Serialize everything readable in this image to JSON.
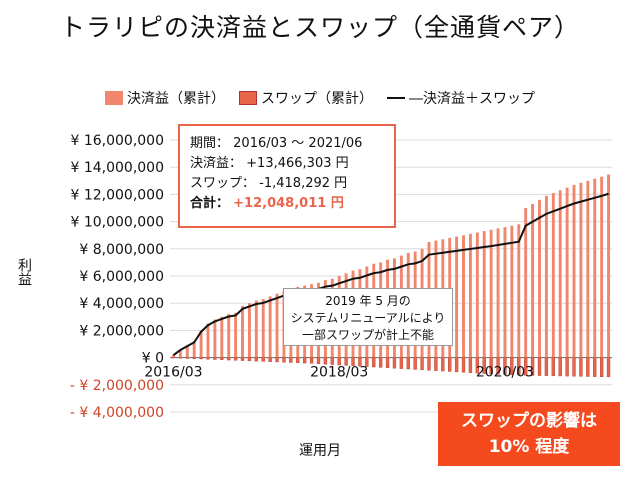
{
  "chart_data": {
    "type": "bar",
    "title": "トラリピの決済益とスワップ（全通貨ペア）",
    "legend": [
      "決済益（累計）",
      "スワップ（累計）",
      "―決済益＋スワップ"
    ],
    "ylabel": "利益",
    "xlabel": "運用月",
    "ylim": [
      -4000000,
      16000000
    ],
    "y_ticks": [
      16000000,
      14000000,
      12000000,
      10000000,
      8000000,
      6000000,
      4000000,
      2000000,
      0,
      -2000000,
      -4000000
    ],
    "y_tick_labels": [
      "¥ 16,000,000",
      "¥ 14,000,000",
      "¥ 12,000,000",
      "¥ 10,000,000",
      "¥ 8,000,000",
      "¥ 6,000,000",
      "¥ 4,000,000",
      "¥ 2,000,000",
      "¥ 0",
      "- ¥ 2,000,000",
      "- ¥ 4,000,000"
    ],
    "x_tick_labels": [
      {
        "label": "2016/03",
        "index": 0
      },
      {
        "label": "2018/03",
        "index": 24
      },
      {
        "label": "2020/03",
        "index": 48
      }
    ],
    "months": 64,
    "series": [
      {
        "name": "決済益（累計）",
        "values": [
          200000,
          600000,
          900000,
          1200000,
          2000000,
          2500000,
          2800000,
          3000000,
          3200000,
          3300000,
          3800000,
          4000000,
          4200000,
          4300000,
          4500000,
          4700000,
          4900000,
          5000000,
          5200000,
          5300000,
          5400000,
          5500000,
          5700000,
          5800000,
          6000000,
          6200000,
          6400000,
          6500000,
          6700000,
          6900000,
          7000000,
          7200000,
          7300000,
          7500000,
          7700000,
          7800000,
          8000000,
          8500000,
          8600000,
          8700000,
          8800000,
          8900000,
          9000000,
          9100000,
          9200000,
          9300000,
          9400000,
          9500000,
          9600000,
          9700000,
          9800000,
          11000000,
          11300000,
          11600000,
          11900000,
          12100000,
          12300000,
          12500000,
          12700000,
          12850000,
          13000000,
          13150000,
          13300000,
          13466303
        ]
      },
      {
        "name": "スワップ（累計）",
        "values": [
          -20000,
          -40000,
          -60000,
          -80000,
          -100000,
          -120000,
          -140000,
          -160000,
          -180000,
          -200000,
          -220000,
          -240000,
          -260000,
          -280000,
          -300000,
          -320000,
          -340000,
          -360000,
          -380000,
          -400000,
          -420000,
          -450000,
          -480000,
          -510000,
          -540000,
          -570000,
          -600000,
          -630000,
          -660000,
          -690000,
          -720000,
          -750000,
          -780000,
          -810000,
          -840000,
          -870000,
          -900000,
          -930000,
          -960000,
          -990000,
          -1020000,
          -1050000,
          -1080000,
          -1110000,
          -1140000,
          -1170000,
          -1200000,
          -1220000,
          -1240000,
          -1260000,
          -1280000,
          -1300000,
          -1310000,
          -1320000,
          -1330000,
          -1340000,
          -1350000,
          -1360000,
          -1370000,
          -1380000,
          -1390000,
          -1400000,
          -1410000,
          -1418292
        ]
      },
      {
        "name": "決済益＋スワップ",
        "values": [
          180000,
          560000,
          840000,
          1120000,
          1900000,
          2380000,
          2660000,
          2840000,
          3020000,
          3100000,
          3580000,
          3760000,
          3940000,
          4020000,
          4200000,
          4380000,
          4560000,
          4640000,
          4820000,
          4900000,
          4980000,
          5050000,
          5220000,
          5290000,
          5460000,
          5630000,
          5800000,
          5870000,
          6040000,
          6210000,
          6280000,
          6450000,
          6520000,
          6690000,
          6860000,
          6930000,
          7100000,
          7570000,
          7640000,
          7710000,
          7780000,
          7850000,
          7920000,
          7990000,
          8060000,
          8130000,
          8200000,
          8280000,
          8360000,
          8440000,
          8520000,
          9700000,
          9990000,
          10280000,
          10570000,
          10760000,
          10950000,
          11140000,
          11330000,
          11470000,
          11610000,
          11750000,
          11890000,
          12048011
        ]
      }
    ]
  },
  "info_box": {
    "period_label": "期間：",
    "period_value": "2016/03 ～ 2021/06",
    "profit_label": "決済益：",
    "profit_value": "+13,466,303 円",
    "swap_label": "スワップ：",
    "swap_value": "-1,418,292 円",
    "total_label": "合計：",
    "total_value": "+12,048,011 円"
  },
  "note": {
    "line1": "2019 年 5 月の",
    "line2": "システムリニューアルにより",
    "line3": "一部スワップが計上不能"
  },
  "badge": {
    "line1": "スワップの影響は",
    "line2": "10% 程度"
  },
  "colors": {
    "profit": "#f0866b",
    "swap": "#e8644a",
    "line": "#111111",
    "negative_tick": "#d0442a",
    "badge": "#f44a1d"
  }
}
